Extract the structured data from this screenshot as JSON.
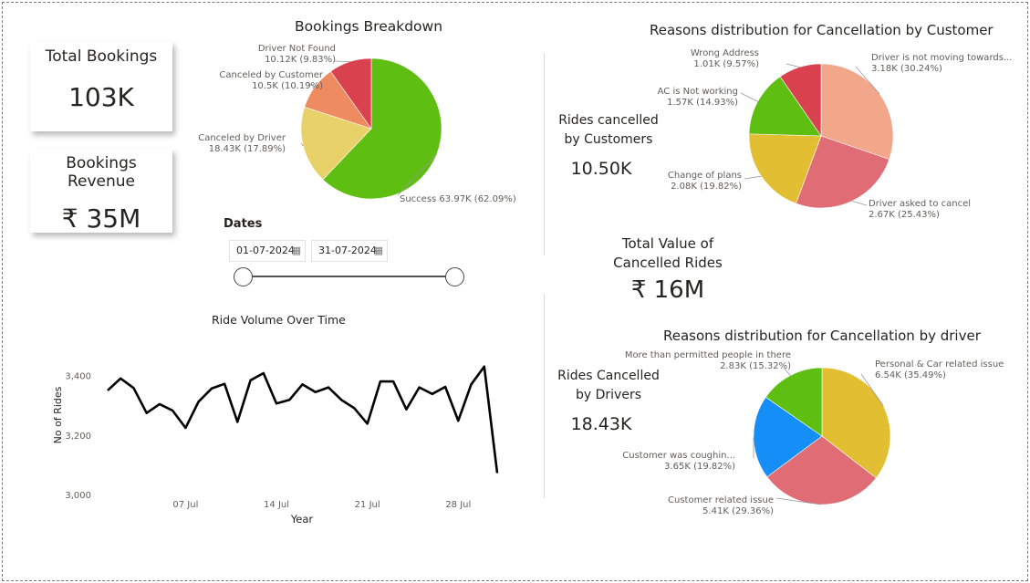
{
  "cards": {
    "total_bookings": {
      "label": "Total Bookings",
      "value": "103K"
    },
    "bookings_revenue": {
      "label": "Bookings Revenue",
      "value": "₹ 35M"
    }
  },
  "kpis": {
    "rides_cancelled_customers": {
      "line1": "Rides cancelled",
      "line2": "by Customers",
      "value": "10.50K"
    },
    "total_value_cancelled": {
      "line1": "Total Value of",
      "line2": "Cancelled Rides",
      "value": "₹ 16M"
    },
    "rides_cancelled_drivers": {
      "line1": "Rides Cancelled",
      "line2": "by Drivers",
      "value": "18.43K"
    }
  },
  "dates": {
    "label": "Dates",
    "start": "01-07-2024",
    "end": "31-07-2024",
    "range_start_fraction": 0,
    "range_end_fraction": 1
  },
  "chart_data": [
    {
      "type": "pie",
      "title": "Bookings Breakdown",
      "start_angle_deg": 0,
      "slices": [
        {
          "label": "Success",
          "display": "Success 63.97K (62.09%)",
          "value": 63.97,
          "percent": 62.09,
          "color": "#5EBE12"
        },
        {
          "label": "Canceled by Driver",
          "display": "18.43K (17.89%)",
          "value": 18.43,
          "percent": 17.89,
          "color": "#E9D16A"
        },
        {
          "label": "Canceled by Customer",
          "display": "10.5K (10.19%)",
          "value": 10.5,
          "percent": 10.19,
          "color": "#EE8B60"
        },
        {
          "label": "Driver Not Found",
          "display": "10.12K (9.83%)",
          "value": 10.12,
          "percent": 9.83,
          "color": "#D9414F"
        }
      ]
    },
    {
      "type": "pie",
      "title": "Reasons distribution for Cancellation by Customer",
      "start_angle_deg": 0,
      "slices": [
        {
          "label": "Driver is not moving towards...",
          "display": "3.18K (30.24%)",
          "value": 3.18,
          "percent": 30.24,
          "color": "#F2A68A"
        },
        {
          "label": "Driver asked to cancel",
          "display": "2.67K (25.43%)",
          "value": 2.67,
          "percent": 25.43,
          "color": "#E06C76"
        },
        {
          "label": "Change of plans",
          "display": "2.08K (19.82%)",
          "value": 2.08,
          "percent": 19.82,
          "color": "#E2BE33"
        },
        {
          "label": "AC is Not working",
          "display": "1.57K (14.93%)",
          "value": 1.57,
          "percent": 14.93,
          "color": "#5EBE12"
        },
        {
          "label": "Wrong Address",
          "display": "1.01K (9.57%)",
          "value": 1.01,
          "percent": 9.57,
          "color": "#D9414F"
        }
      ]
    },
    {
      "type": "pie",
      "title": "Reasons distribution for Cancellation by driver",
      "start_angle_deg": 0,
      "slices": [
        {
          "label": "Personal & Car related issue",
          "display": "6.54K (35.49%)",
          "value": 6.54,
          "percent": 35.49,
          "color": "#E2BE33"
        },
        {
          "label": "Customer related issue",
          "display": "5.41K (29.36%)",
          "value": 5.41,
          "percent": 29.36,
          "color": "#E06C76"
        },
        {
          "label": "Customer was coughin...",
          "display": "3.65K (19.82%)",
          "value": 3.65,
          "percent": 19.82,
          "color": "#168EF7"
        },
        {
          "label": "More than permitted people in there",
          "display": "2.83K (15.32%)",
          "value": 2.83,
          "percent": 15.32,
          "color": "#5EBE12"
        }
      ]
    },
    {
      "type": "line",
      "title": "Ride Volume Over Time",
      "xlabel": "Year",
      "ylabel": "No of Rides",
      "ylim": [
        3000,
        3460
      ],
      "yticks": [
        3000,
        3200,
        3400
      ],
      "ytick_labels": [
        "3,000",
        "3,200",
        "3,400"
      ],
      "xticks": [
        "2024-07-07",
        "2024-07-14",
        "2024-07-21",
        "2024-07-28"
      ],
      "xtick_labels": [
        "07 Jul",
        "14 Jul",
        "21 Jul",
        "28 Jul"
      ],
      "line_color": "#000000",
      "x": [
        "2024-07-01",
        "2024-07-02",
        "2024-07-03",
        "2024-07-04",
        "2024-07-05",
        "2024-07-06",
        "2024-07-07",
        "2024-07-08",
        "2024-07-09",
        "2024-07-10",
        "2024-07-11",
        "2024-07-12",
        "2024-07-13",
        "2024-07-14",
        "2024-07-15",
        "2024-07-16",
        "2024-07-17",
        "2024-07-18",
        "2024-07-19",
        "2024-07-20",
        "2024-07-21",
        "2024-07-22",
        "2024-07-23",
        "2024-07-24",
        "2024-07-25",
        "2024-07-26",
        "2024-07-27",
        "2024-07-28",
        "2024-07-29",
        "2024-07-30",
        "2024-07-31"
      ],
      "values": [
        3350,
        3390,
        3358,
        3274,
        3304,
        3282,
        3224,
        3312,
        3356,
        3372,
        3244,
        3384,
        3408,
        3306,
        3318,
        3370,
        3344,
        3360,
        3318,
        3290,
        3238,
        3380,
        3380,
        3286,
        3360,
        3338,
        3362,
        3248,
        3370,
        3430,
        3072
      ]
    }
  ]
}
